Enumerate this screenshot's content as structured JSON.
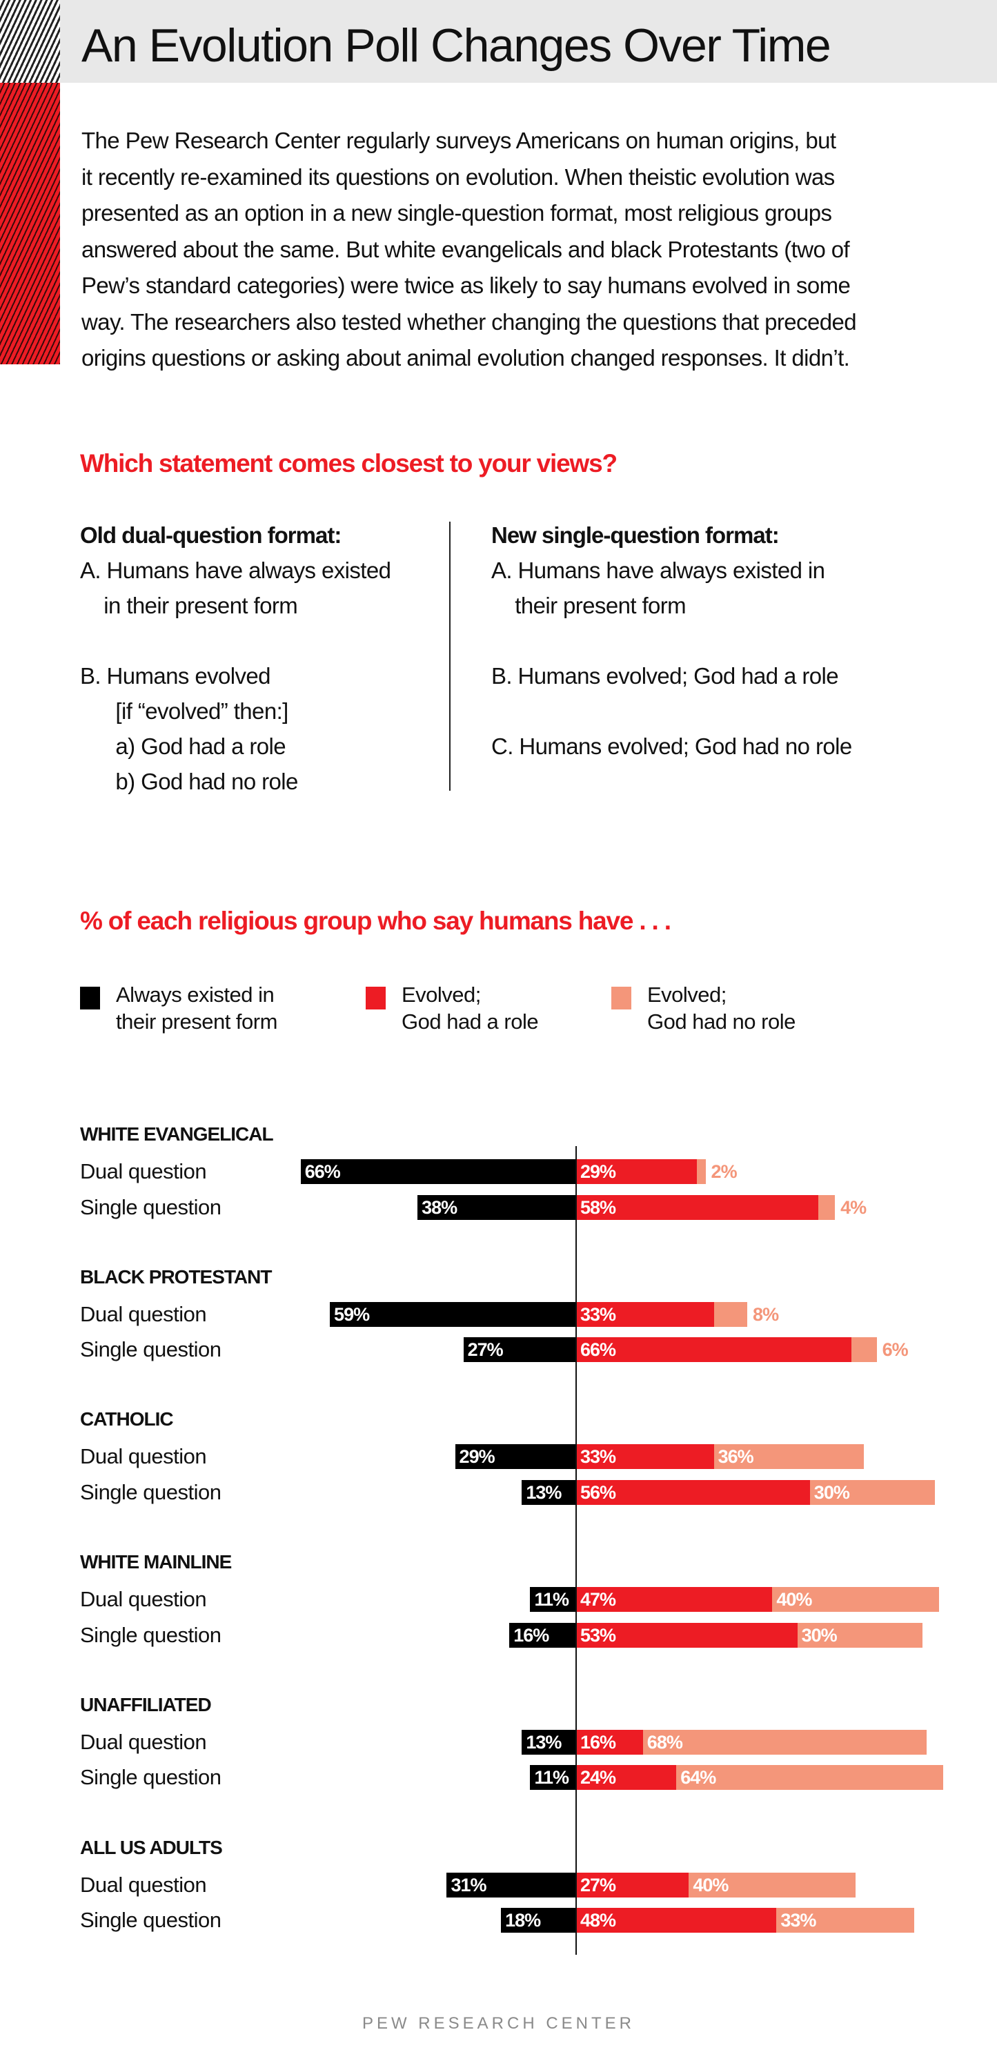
{
  "title": "An Evolution Poll Changes Over Time",
  "intro_lines": [
    "The Pew Research Center regularly surveys Americans on human origins, but",
    "it recently re-examined its questions on evolution. When theistic evolution was",
    "presented as an option in a new single-question format, most religious groups",
    "answered about the same. But white evangelicals and black Protestants (two of",
    "Pew’s standard categories) were twice as likely to say humans evolved in some",
    "way. The researchers also tested whether changing the questions that preceded",
    "origins questions or asking about animal evolution changed responses. It didn’t."
  ],
  "question_heading": "Which statement comes closest to your views?",
  "old_format": {
    "heading": "Old dual-question format:",
    "lines": [
      "A. Humans have always existed",
      "    in their present form",
      "",
      "B. Humans evolved",
      "      [if “evolved” then:]",
      "      a) God had a role",
      "      b) God had no role"
    ]
  },
  "new_format": {
    "heading": "New single-question format:",
    "lines": [
      "A. Humans have always existed in",
      "    their present form",
      "",
      "B. Humans evolved; God had a role",
      "",
      "C. Humans evolved; God had no role"
    ]
  },
  "colors": {
    "black": "#000000",
    "red": "#ed1c24",
    "salmon": "#f4967a"
  },
  "footer": "PEW RESEARCH CENTER",
  "chart_data": {
    "type": "bar",
    "subtype": "diverging-stacked-horizontal",
    "title": "% of each religious group who say humans have . . .",
    "legend": [
      {
        "label": "Always existed in\ntheir present form",
        "color": "#000000"
      },
      {
        "label": "Evolved;\nGod had a role",
        "color": "#ed1c24"
      },
      {
        "label": "Evolved;\nGod had no role",
        "color": "#f4967a"
      }
    ],
    "groups": [
      {
        "name": "WHITE EVANGELICAL",
        "rows": [
          {
            "label": "Dual question",
            "always": 66,
            "god_role": 29,
            "no_role": 2
          },
          {
            "label": "Single question",
            "always": 38,
            "god_role": 58,
            "no_role": 4
          }
        ]
      },
      {
        "name": "BLACK PROTESTANT",
        "rows": [
          {
            "label": "Dual question",
            "always": 59,
            "god_role": 33,
            "no_role": 8
          },
          {
            "label": "Single question",
            "always": 27,
            "god_role": 66,
            "no_role": 6
          }
        ]
      },
      {
        "name": "CATHOLIC",
        "rows": [
          {
            "label": "Dual question",
            "always": 29,
            "god_role": 33,
            "no_role": 36
          },
          {
            "label": "Single question",
            "always": 13,
            "god_role": 56,
            "no_role": 30
          }
        ]
      },
      {
        "name": "WHITE MAINLINE",
        "rows": [
          {
            "label": "Dual question",
            "always": 11,
            "god_role": 47,
            "no_role": 40
          },
          {
            "label": "Single question",
            "always": 16,
            "god_role": 53,
            "no_role": 30
          }
        ]
      },
      {
        "name": "UNAFFILIATED",
        "rows": [
          {
            "label": "Dual question",
            "always": 13,
            "god_role": 16,
            "no_role": 68
          },
          {
            "label": "Single question",
            "always": 11,
            "god_role": 24,
            "no_role": 64
          }
        ]
      },
      {
        "name": "ALL US ADULTS",
        "rows": [
          {
            "label": "Dual question",
            "always": 31,
            "god_role": 27,
            "no_role": 40
          },
          {
            "label": "Single question",
            "always": 18,
            "god_role": 48,
            "no_role": 33
          }
        ]
      }
    ]
  }
}
